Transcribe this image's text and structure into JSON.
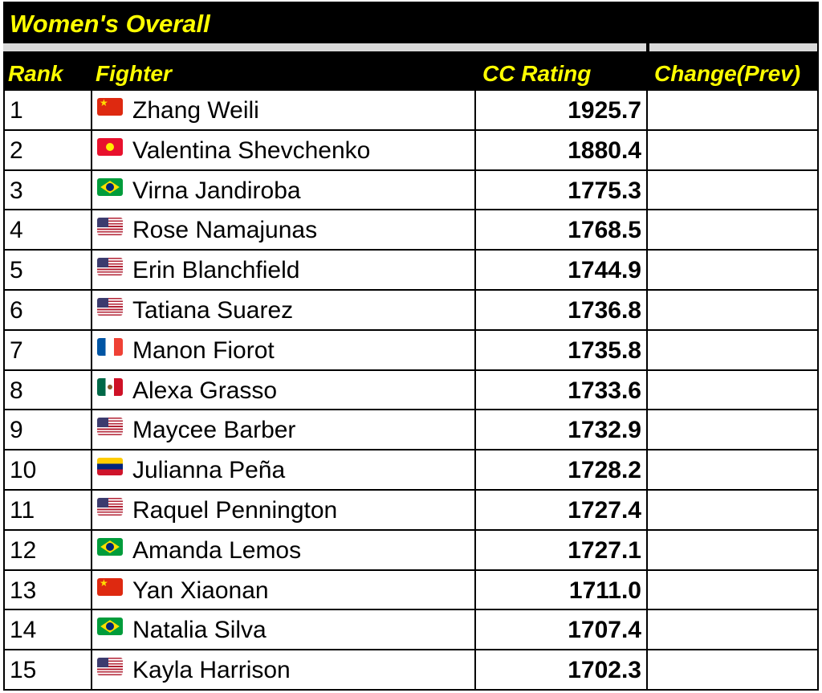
{
  "title": "Women's Overall",
  "headers": {
    "rank": "Rank",
    "fighter": "Fighter",
    "rating": "CC Rating",
    "change": "Change(Prev)"
  },
  "colors": {
    "header_bg": "#000000",
    "header_text": "#ffff00",
    "separator": "#d9d9d9"
  },
  "rows": [
    {
      "rank": "1",
      "country": "CN",
      "fighter": "Zhang Weili",
      "rating": "1925.7",
      "change": ""
    },
    {
      "rank": "2",
      "country": "KG",
      "fighter": "Valentina Shevchenko",
      "rating": "1880.4",
      "change": ""
    },
    {
      "rank": "3",
      "country": "BR",
      "fighter": "Virna Jandiroba",
      "rating": "1775.3",
      "change": ""
    },
    {
      "rank": "4",
      "country": "US",
      "fighter": "Rose Namajunas",
      "rating": "1768.5",
      "change": ""
    },
    {
      "rank": "5",
      "country": "US",
      "fighter": "Erin Blanchfield",
      "rating": "1744.9",
      "change": ""
    },
    {
      "rank": "6",
      "country": "US",
      "fighter": "Tatiana Suarez",
      "rating": "1736.8",
      "change": ""
    },
    {
      "rank": "7",
      "country": "FR",
      "fighter": "Manon Fiorot",
      "rating": "1735.8",
      "change": ""
    },
    {
      "rank": "8",
      "country": "MX",
      "fighter": "Alexa Grasso",
      "rating": "1733.6",
      "change": ""
    },
    {
      "rank": "9",
      "country": "US",
      "fighter": "Maycee Barber",
      "rating": "1732.9",
      "change": ""
    },
    {
      "rank": "10",
      "country": "VE",
      "fighter": "Julianna Peña",
      "rating": "1728.2",
      "change": ""
    },
    {
      "rank": "11",
      "country": "US",
      "fighter": "Raquel Pennington",
      "rating": "1727.4",
      "change": ""
    },
    {
      "rank": "12",
      "country": "BR",
      "fighter": "Amanda Lemos",
      "rating": "1727.1",
      "change": ""
    },
    {
      "rank": "13",
      "country": "CN",
      "fighter": "Yan Xiaonan",
      "rating": "1711.0",
      "change": ""
    },
    {
      "rank": "14",
      "country": "BR",
      "fighter": "Natalia Silva",
      "rating": "1707.4",
      "change": ""
    },
    {
      "rank": "15",
      "country": "US",
      "fighter": "Kayla Harrison",
      "rating": "1702.3",
      "change": ""
    }
  ]
}
